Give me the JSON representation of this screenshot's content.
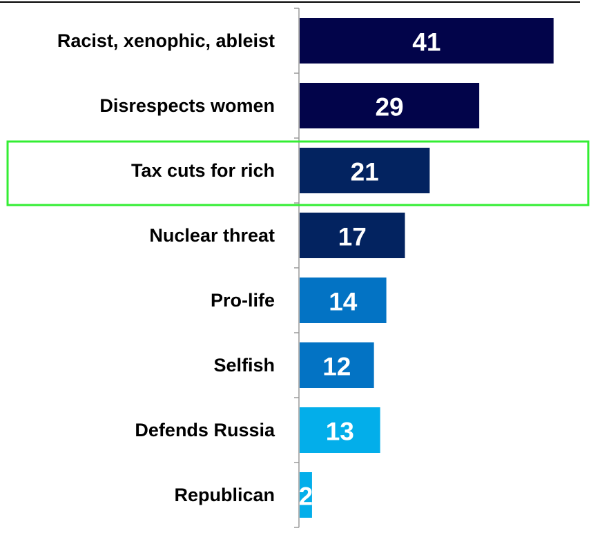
{
  "chart_data": {
    "type": "bar",
    "orientation": "horizontal",
    "categories": [
      "Racist, xenophic, ableist",
      "Disrespects women",
      "Tax cuts for rich",
      "Nuclear threat",
      "Pro-life",
      "Selfish",
      "Defends Russia",
      "Republican"
    ],
    "values": [
      41,
      29,
      21,
      17,
      14,
      12,
      13,
      2
    ],
    "bar_colors": [
      "#02044a",
      "#02044a",
      "#032360",
      "#032360",
      "#0373c4",
      "#0373c4",
      "#03aeea",
      "#03aeea"
    ],
    "highlighted_category": "Tax cuts for rich",
    "highlight_color": "#33ee33",
    "title": "",
    "xlabel": "",
    "ylabel": "",
    "grid": false,
    "legend": "none"
  }
}
